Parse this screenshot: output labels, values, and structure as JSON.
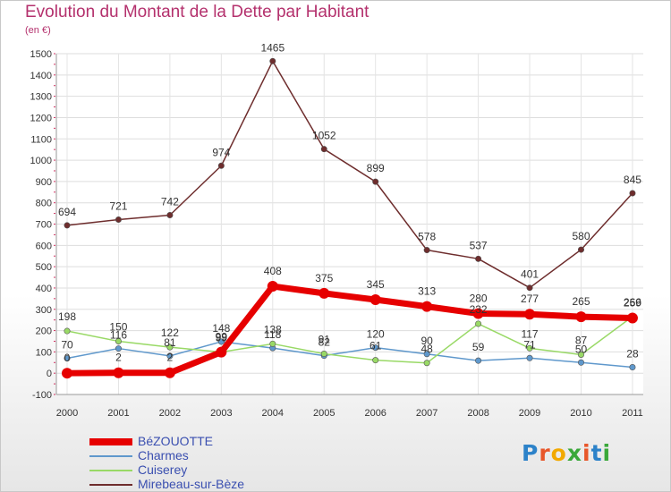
{
  "title": "Evolution du Montant de la Dette par Habitant",
  "unit_label": "(en €)",
  "logo": {
    "letters": [
      "P",
      "r",
      "o",
      "x",
      "i",
      "t",
      "i"
    ],
    "colors": [
      "#2c82c9",
      "#e8562a",
      "#f2a900",
      "#3aa83a",
      "#e8562a",
      "#2c82c9",
      "#3aa83a"
    ]
  },
  "chart_data": {
    "type": "line",
    "title": "Evolution du Montant de la Dette par Habitant",
    "ylabel": "(en €)",
    "x": [
      "2000",
      "2001",
      "2002",
      "2003",
      "2004",
      "2005",
      "2006",
      "2007",
      "2008",
      "2009",
      "2010",
      "2011"
    ],
    "ylim": [
      -100,
      1500
    ],
    "yticks": [
      -100,
      0,
      100,
      200,
      300,
      400,
      500,
      600,
      700,
      800,
      900,
      1000,
      1100,
      1200,
      1300,
      1400,
      1500
    ],
    "grid": true,
    "legend_position": "bottom-left",
    "series": [
      {
        "name": "BéZOUOTTE",
        "color": "#e60000",
        "values": [
          0,
          2,
          2,
          99,
          408,
          375,
          345,
          313,
          280,
          277,
          265,
          259
        ],
        "labels": [
          "0",
          "2",
          "2",
          "99",
          "408",
          "375",
          "345",
          "313",
          "280",
          "277",
          "265",
          "259"
        ]
      },
      {
        "name": "Charmes",
        "color": "#5f98cc",
        "values": [
          70,
          116,
          81,
          148,
          118,
          82,
          120,
          90,
          59,
          71,
          50,
          28
        ],
        "labels": [
          "70",
          "116",
          "81",
          "148",
          "118",
          "82",
          "120",
          "90",
          "59",
          "71",
          "50",
          "28"
        ]
      },
      {
        "name": "Cuiserey",
        "color": "#99d966",
        "values": [
          198,
          150,
          122,
          99,
          138,
          91,
          61,
          48,
          232,
          117,
          87,
          266
        ],
        "labels": [
          "198",
          "150",
          "122",
          "99",
          "138",
          "91",
          "61",
          "48",
          "232",
          "117",
          "87",
          "266"
        ]
      },
      {
        "name": "Mirebeau-sur-Bèze",
        "color": "#6e2d2d",
        "values": [
          694,
          721,
          742,
          974,
          1465,
          1052,
          899,
          578,
          537,
          401,
          580,
          845
        ],
        "labels": [
          "694",
          "721",
          "742",
          "974",
          "1465",
          "1052",
          "899",
          "578",
          "537",
          "401",
          "580",
          "845"
        ]
      }
    ]
  }
}
